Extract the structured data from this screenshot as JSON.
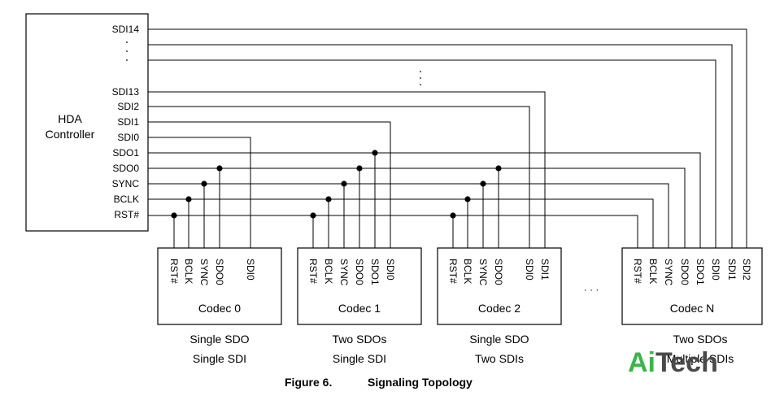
{
  "controller": {
    "title_line1": "HDA",
    "title_line2": "Controller",
    "signals": [
      "SDI14",
      "SDI13",
      "SDI2",
      "SDI1",
      "SDI0",
      "SDO1",
      "SDO0",
      "SYNC",
      "BCLK",
      "RST#"
    ]
  },
  "codecs": [
    {
      "name": "Codec 0",
      "pins": [
        "RST#",
        "BCLK",
        "SYNC",
        "SDO0",
        "SDI0"
      ],
      "caption_line1": "Single SDO",
      "caption_line2": "Single SDI"
    },
    {
      "name": "Codec 1",
      "pins": [
        "RST#",
        "BCLK",
        "SYNC",
        "SDO0",
        "SDO1",
        "SDI0"
      ],
      "caption_line1": "Two SDOs",
      "caption_line2": "Single SDI"
    },
    {
      "name": "Codec 2",
      "pins": [
        "RST#",
        "BCLK",
        "SYNC",
        "SDO0",
        "SDI0",
        "SDI1"
      ],
      "caption_line1": "Single SDO",
      "caption_line2": "Two SDIs"
    },
    {
      "name": "Codec N",
      "pins": [
        "RST#",
        "BCLK",
        "SYNC",
        "SDO0",
        "SDO1",
        "SDI0",
        "SDI1",
        "SDI2"
      ],
      "caption_line1": "Two SDOs",
      "caption_line2": "Multiple SDIs"
    }
  ],
  "ellipsis": "· · ·",
  "figure": {
    "number": "Figure 6.",
    "title": "Signaling Topology"
  },
  "watermark": {
    "part1": "Ai",
    "part2": "Tech"
  },
  "colors": {
    "line": "#000000",
    "watermark_green": "#3bb54a",
    "watermark_gray": "#4a4a4a"
  }
}
